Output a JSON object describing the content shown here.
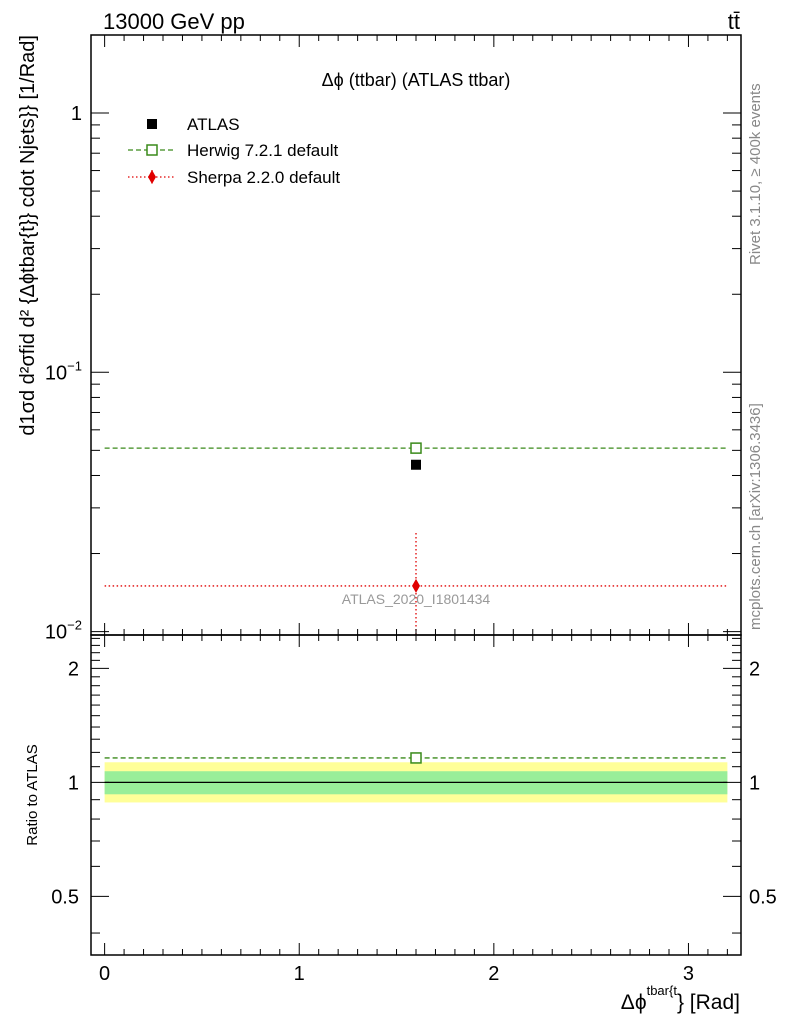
{
  "header": {
    "left": "13000 GeV pp",
    "right": "tt̄"
  },
  "side_labels": {
    "rivet": "Rivet 3.1.10, ≥ 400k events",
    "mcplots": "mcplots.cern.ch [arXiv:1306.3436]"
  },
  "main_plot": {
    "title": "Δϕ (ttbar) (ATLAS ttbar)",
    "ylabel": "d1σd d²σfid d² {Δϕtbar{t}} cdot Njets}} [1/Rad]",
    "analysis_tag": "ATLAS_2020_I1801434",
    "yticks": [
      {
        "mant": "10",
        "exp": "−2",
        "v": 0.01
      },
      {
        "mant": "10",
        "exp": "−1",
        "v": 0.1
      },
      {
        "mant": "1",
        "exp": "",
        "v": 1
      }
    ]
  },
  "ratio_plot": {
    "ylabel": "Ratio to ATLAS",
    "yticks": [
      {
        "label": "0.5",
        "v": 0.5
      },
      {
        "label": "1",
        "v": 1
      },
      {
        "label": "2",
        "v": 2
      }
    ]
  },
  "xaxis": {
    "label_main": "Δϕ",
    "label_sup": "tbar{t",
    "label_tail": "} [Rad]",
    "ticks": [
      {
        "label": "0",
        "v": 0
      },
      {
        "label": "1",
        "v": 1
      },
      {
        "label": "2",
        "v": 2
      },
      {
        "label": "3",
        "v": 3
      }
    ]
  },
  "legend": [
    {
      "name": "ATLAS",
      "color": "#000000",
      "marker": "square-filled"
    },
    {
      "name": "Herwig 7.2.1 default",
      "color": "#3a8a1a",
      "marker": "square-open"
    },
    {
      "name": "Sherpa 2.2.0 default",
      "color": "#e00000",
      "marker": "diamond-filled"
    }
  ],
  "chart_data": {
    "type": "scatter",
    "title": "Δϕ (ttbar) (ATLAS ttbar)",
    "xlabel": "Δϕtbar{t} [Rad]",
    "ylabel": "d1σd d²σfid d² {Δϕtbar{t}} cdot Njets}} [1/Rad]",
    "xlim": [
      -0.07,
      3.27
    ],
    "ylim": [
      0.0097,
      2.0
    ],
    "yscale": "log",
    "bin": [
      0,
      3.2
    ],
    "x_center": 1.6,
    "series": [
      {
        "name": "ATLAS",
        "x": [
          1.6
        ],
        "y": [
          0.044
        ],
        "y_err": [
          0,
          0
        ]
      },
      {
        "name": "Herwig 7.2.1 default",
        "x": [
          1.6
        ],
        "y": [
          0.051
        ],
        "y_err": [
          0,
          0
        ]
      },
      {
        "name": "Sherpa 2.2.0 default",
        "x": [
          1.6
        ],
        "y": [
          0.015
        ],
        "y_err": [
          0.0055,
          0.009
        ]
      }
    ],
    "ratio": {
      "ylabel": "Ratio to ATLAS",
      "ylim": [
        0.35,
        2.45
      ],
      "yscale": "log",
      "data_band_stat": [
        0.93,
        1.07
      ],
      "data_band_total": [
        0.885,
        1.13
      ],
      "series": [
        {
          "name": "Herwig 7.2.1 default",
          "x": [
            1.6
          ],
          "y": [
            1.16
          ]
        }
      ]
    },
    "colors": {
      "data": "#000000",
      "herwig": "#3a8a1a",
      "sherpa": "#e00000",
      "band_inner": "#99ee99",
      "band_outer": "#ffff99"
    }
  }
}
